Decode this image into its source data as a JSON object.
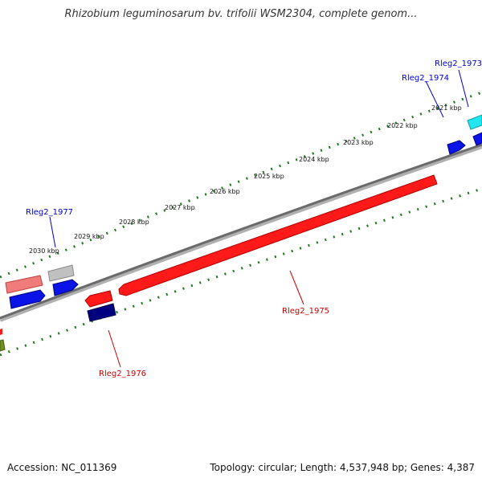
{
  "title": "Rhizobium leguminosarum bv. trifolii WSM2304, complete genom...",
  "footer": {
    "accession": "Accession: NC_011369",
    "summary": "Topology: circular; Length: 4,537,948 bp; Genes: 4,387"
  },
  "colors": {
    "backbone": "#7a7a7a",
    "tick_green": "#1f7a1f",
    "label_blue": "#0000cc",
    "label_red": "#cc0000",
    "gene_red": "#ff1a1a",
    "gene_blue": "#0a14e6",
    "gene_navy": "#000080",
    "gene_cyan": "#22e5f0",
    "gene_pink": "#f07b7b",
    "gene_gray": "#b8b8b8",
    "gene_olive": "#6f8f1f"
  },
  "scale_labels": [
    "2021 kbp",
    "2022 kbp",
    "2023 kbp",
    "2024 kbp",
    "2025 kbp",
    "2026 kbp",
    "2027 kbp",
    "2028 kbp",
    "2029 kbp",
    "2030 kbp"
  ],
  "gene_labels": {
    "rleg2_1973": "Rleg2_1973",
    "rleg2_1974": "Rleg2_1974",
    "rleg2_1975": "Rleg2_1975",
    "rleg2_1976": "Rleg2_1976",
    "rleg2_1977": "Rleg2_1977"
  }
}
